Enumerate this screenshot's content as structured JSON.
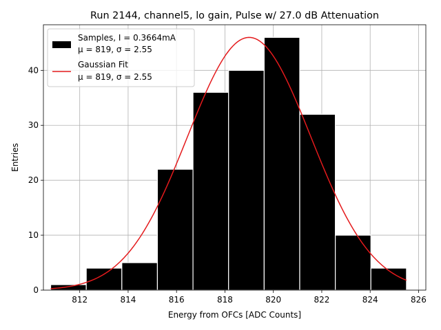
{
  "chart_data": {
    "type": "histogram",
    "title": "Run 2144, channel5, lo gain, Pulse w/ 27.0 dB Attenuation",
    "xlabel": "Energy from OFCs [ADC Counts]",
    "ylabel": "Entries",
    "xlim": [
      810.5,
      826.3
    ],
    "ylim": [
      0,
      48.3
    ],
    "grid": true,
    "xticks": [
      812,
      814,
      816,
      818,
      820,
      822,
      824,
      826
    ],
    "xtick_labels": [
      "812",
      "814",
      "816",
      "818",
      "820",
      "822",
      "824",
      "826"
    ],
    "yticks": [
      0,
      10,
      20,
      30,
      40
    ],
    "ytick_labels": [
      "0",
      "10",
      "20",
      "30",
      "40"
    ],
    "bins": [
      {
        "x0": 810.8,
        "x1": 812.27,
        "count": 1
      },
      {
        "x0": 812.27,
        "x1": 813.74,
        "count": 4
      },
      {
        "x0": 813.74,
        "x1": 815.21,
        "count": 5
      },
      {
        "x0": 815.21,
        "x1": 816.68,
        "count": 22
      },
      {
        "x0": 816.68,
        "x1": 818.15,
        "count": 36
      },
      {
        "x0": 818.15,
        "x1": 819.62,
        "count": 40
      },
      {
        "x0": 819.62,
        "x1": 821.09,
        "count": 46
      },
      {
        "x0": 821.09,
        "x1": 822.56,
        "count": 32
      },
      {
        "x0": 822.56,
        "x1": 824.03,
        "count": 10
      },
      {
        "x0": 824.03,
        "x1": 825.5,
        "count": 4
      }
    ],
    "fit": {
      "name": "Gaussian Fit",
      "mean": 819.0,
      "sigma": 2.55,
      "amplitude": 46.0,
      "x_range": [
        810.8,
        825.5
      ],
      "color": "#e41a1c"
    },
    "series_color": "#000000",
    "legend": {
      "location": "upper left",
      "entries": [
        {
          "kind": "patch",
          "line1": "Samples, I = 0.3664mA",
          "line2": "μ = 819, σ = 2.55"
        },
        {
          "kind": "line",
          "line1": "Gaussian Fit",
          "line2": "μ = 819, σ = 2.55"
        }
      ]
    }
  }
}
